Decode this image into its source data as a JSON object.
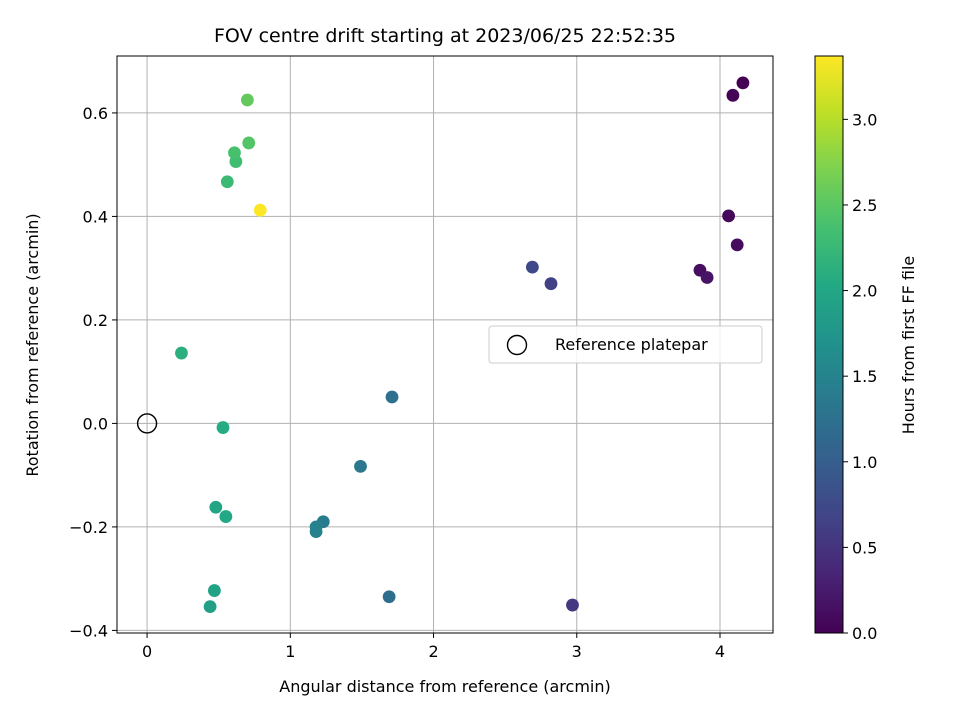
{
  "chart_data": {
    "type": "scatter",
    "title": "FOV centre drift starting at 2023/06/25 22:52:35",
    "xlabel": "Angular distance from reference (arcmin)",
    "ylabel": "Rotation from reference (arcmin)",
    "xlim": [
      -0.21,
      4.37
    ],
    "ylim": [
      -0.405,
      0.71
    ],
    "xticks": [
      0,
      1,
      2,
      3,
      4
    ],
    "xtick_labels": [
      "0",
      "1",
      "2",
      "3",
      "4"
    ],
    "yticks": [
      -0.4,
      -0.2,
      0.0,
      0.2,
      0.4,
      0.6
    ],
    "ytick_labels": [
      "−0.4",
      "−0.2",
      "0.0",
      "0.2",
      "0.4",
      "0.6"
    ],
    "grid": true,
    "legend": {
      "placement": "center-right",
      "entries": [
        "Reference platepar"
      ]
    },
    "colorbar": {
      "label": "Hours from first FF file",
      "colormap": "viridis",
      "range": [
        0.0,
        3.37
      ],
      "ticks": [
        0.0,
        0.5,
        1.0,
        1.5,
        2.0,
        2.5,
        3.0
      ],
      "tick_labels": [
        "0.0",
        "0.5",
        "1.0",
        "1.5",
        "2.0",
        "2.5",
        "3.0"
      ]
    },
    "reference_point": {
      "x": 0.0,
      "y": 0.0
    },
    "points": [
      {
        "x": 4.16,
        "y": 0.658,
        "hours": 0.0
      },
      {
        "x": 4.09,
        "y": 0.634,
        "hours": 0.03
      },
      {
        "x": 4.06,
        "y": 0.401,
        "hours": 0.07
      },
      {
        "x": 4.12,
        "y": 0.345,
        "hours": 0.1
      },
      {
        "x": 3.86,
        "y": 0.296,
        "hours": 0.13
      },
      {
        "x": 3.91,
        "y": 0.282,
        "hours": 0.17
      },
      {
        "x": 2.97,
        "y": -0.351,
        "hours": 0.55
      },
      {
        "x": 2.82,
        "y": 0.27,
        "hours": 0.65
      },
      {
        "x": 2.69,
        "y": 0.302,
        "hours": 0.72
      },
      {
        "x": 1.69,
        "y": -0.335,
        "hours": 1.2
      },
      {
        "x": 1.71,
        "y": 0.051,
        "hours": 1.25
      },
      {
        "x": 1.49,
        "y": -0.083,
        "hours": 1.33
      },
      {
        "x": 1.23,
        "y": -0.19,
        "hours": 1.4
      },
      {
        "x": 1.18,
        "y": -0.2,
        "hours": 1.45
      },
      {
        "x": 1.18,
        "y": -0.209,
        "hours": 1.5
      },
      {
        "x": 0.44,
        "y": -0.354,
        "hours": 1.9
      },
      {
        "x": 0.47,
        "y": -0.323,
        "hours": 1.95
      },
      {
        "x": 0.48,
        "y": -0.162,
        "hours": 1.98
      },
      {
        "x": 0.55,
        "y": -0.18,
        "hours": 2.02
      },
      {
        "x": 0.53,
        "y": -0.008,
        "hours": 2.06
      },
      {
        "x": 0.24,
        "y": 0.136,
        "hours": 2.12
      },
      {
        "x": 0.56,
        "y": 0.467,
        "hours": 2.28
      },
      {
        "x": 0.62,
        "y": 0.506,
        "hours": 2.33
      },
      {
        "x": 0.61,
        "y": 0.523,
        "hours": 2.38
      },
      {
        "x": 0.71,
        "y": 0.542,
        "hours": 2.45
      },
      {
        "x": 0.7,
        "y": 0.625,
        "hours": 2.55
      },
      {
        "x": 0.79,
        "y": 0.412,
        "hours": 3.37
      }
    ]
  }
}
